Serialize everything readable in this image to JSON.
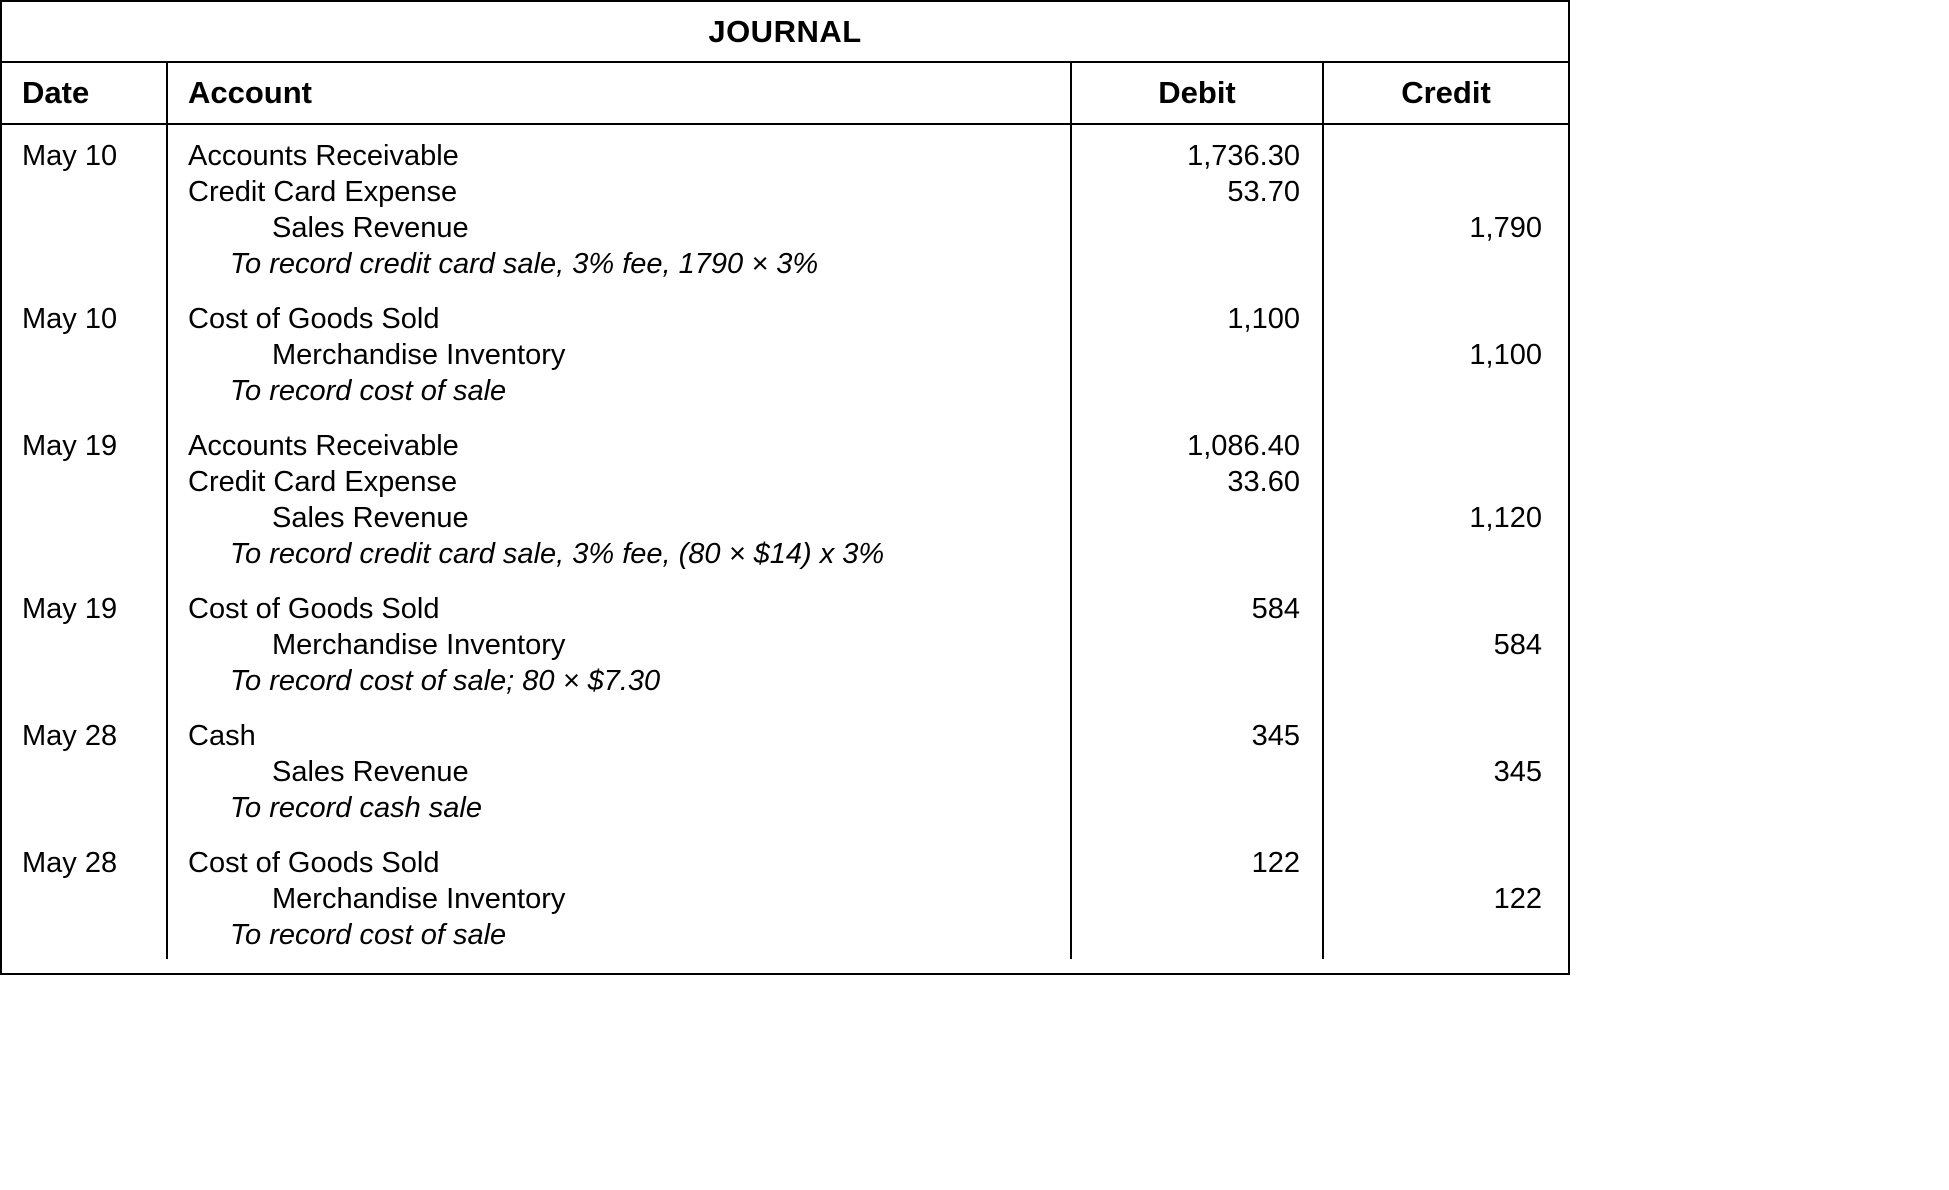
{
  "title": "JOURNAL",
  "columns": {
    "date": "Date",
    "account": "Account",
    "debit": "Debit",
    "credit": "Credit"
  },
  "entries": [
    {
      "date": "May 10",
      "lines": [
        {
          "account": "Accounts Receivable",
          "debit": "1,736.30",
          "credit": "",
          "indent": false
        },
        {
          "account": "Credit Card Expense",
          "debit": "53.70",
          "credit": "",
          "indent": false
        },
        {
          "account": "Sales Revenue",
          "debit": "",
          "credit": "1,790",
          "indent": true
        }
      ],
      "note": "To record credit card sale, 3% fee, 1790 × 3%"
    },
    {
      "date": "May 10",
      "lines": [
        {
          "account": "Cost of Goods Sold",
          "debit": "1,100",
          "credit": "",
          "indent": false
        },
        {
          "account": "Merchandise Inventory",
          "debit": "",
          "credit": "1,100",
          "indent": true
        }
      ],
      "note": "To record cost of sale"
    },
    {
      "date": "May 19",
      "lines": [
        {
          "account": "Accounts Receivable",
          "debit": "1,086.40",
          "credit": "",
          "indent": false
        },
        {
          "account": "Credit Card Expense",
          "debit": "33.60",
          "credit": "",
          "indent": false
        },
        {
          "account": "Sales Revenue",
          "debit": "",
          "credit": "1,120",
          "indent": true
        }
      ],
      "note": "To record credit card sale, 3% fee, (80 × $14) x 3%"
    },
    {
      "date": "May 19",
      "lines": [
        {
          "account": "Cost of Goods Sold",
          "debit": "584",
          "credit": "",
          "indent": false
        },
        {
          "account": "Merchandise Inventory",
          "debit": "",
          "credit": "584",
          "indent": true
        }
      ],
      "note": "To record cost of sale; 80 × $7.30"
    },
    {
      "date": "May 28",
      "lines": [
        {
          "account": "Cash",
          "debit": "345",
          "credit": "",
          "indent": false
        },
        {
          "account": "Sales Revenue",
          "debit": "",
          "credit": "345",
          "indent": true
        }
      ],
      "note": "To record cash sale"
    },
    {
      "date": "May 28",
      "lines": [
        {
          "account": "Cost of Goods Sold",
          "debit": "122",
          "credit": "",
          "indent": false
        },
        {
          "account": "Merchandise Inventory",
          "debit": "",
          "credit": "122",
          "indent": true
        }
      ],
      "note": "To record cost of sale"
    }
  ]
}
